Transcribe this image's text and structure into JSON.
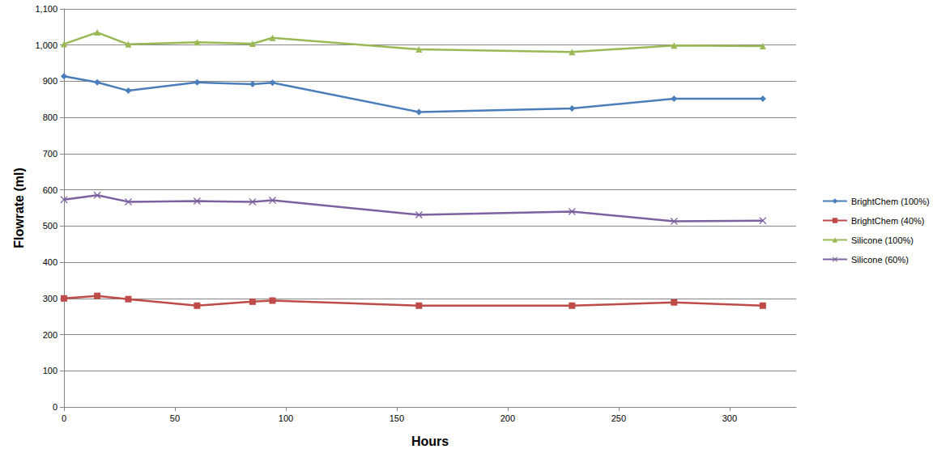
{
  "chart_data": {
    "type": "line",
    "x_label": "Hours",
    "y_label": "Flowrate (ml)",
    "x": [
      0,
      15,
      29,
      60,
      85,
      94,
      160,
      229,
      275,
      315
    ],
    "series": [
      {
        "name": "BrightChem (100%)",
        "color": "#4a7ebb",
        "marker": "diamond",
        "values": [
          914,
          897,
          874,
          897,
          892,
          896,
          815,
          825,
          852,
          852
        ]
      },
      {
        "name": "BrightChem (40%)",
        "color": "#be4b48",
        "marker": "square",
        "values": [
          300,
          307,
          298,
          280,
          291,
          294,
          280,
          280,
          289,
          280
        ]
      },
      {
        "name": "Silicone (100%)",
        "color": "#98b954",
        "marker": "triangle",
        "values": [
          1003,
          1035,
          1002,
          1008,
          1004,
          1020,
          988,
          981,
          999,
          997
        ]
      },
      {
        "name": "Silicone (60%)",
        "color": "#7d60a0",
        "marker": "x",
        "values": [
          573,
          585,
          567,
          569,
          567,
          571,
          531,
          540,
          513,
          515
        ]
      }
    ],
    "xlim": [
      0,
      330
    ],
    "xticks": [
      0,
      50,
      100,
      150,
      200,
      250,
      300
    ],
    "ylim": [
      0,
      1100
    ],
    "yticks": [
      0,
      100,
      200,
      300,
      400,
      500,
      600,
      700,
      800,
      900,
      1000,
      1100
    ],
    "grid": true,
    "legend": "right"
  }
}
